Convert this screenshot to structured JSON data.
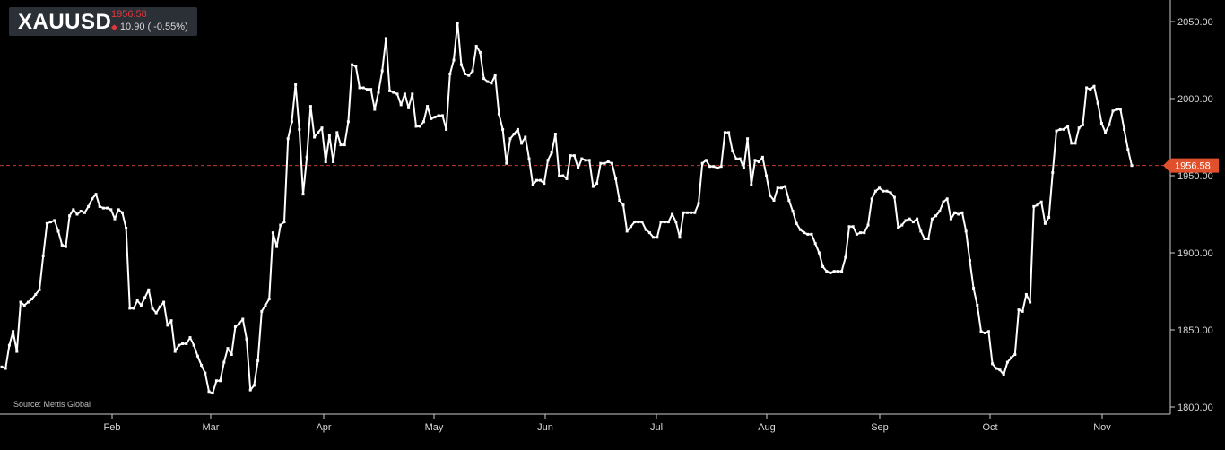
{
  "header": {
    "symbol": "XAUUSD",
    "price": "1956.58",
    "change": "10.90 ( -0.55%)"
  },
  "source": "Source: Mettis Global",
  "colors": {
    "background": "#000000",
    "line": "#ffffff",
    "price_line": "#c0392b",
    "price_tag": "#e0502c",
    "axis": "#cccccc",
    "down": "#e0383e"
  },
  "chart_data": {
    "type": "line",
    "title": "XAUUSD",
    "x_tick_labels": [
      "Feb",
      "Mar",
      "Apr",
      "May",
      "Jun",
      "Jul",
      "Aug",
      "Sep",
      "Oct",
      "Nov"
    ],
    "y_tick_labels": [
      "2050.00",
      "2000.00",
      "1950.00",
      "1900.00",
      "1850.00",
      "1800.00"
    ],
    "y_ticks": [
      2050,
      2000,
      1950,
      1900,
      1850,
      1800
    ],
    "ylim": [
      1800,
      2050
    ],
    "y_axis_position": "right",
    "grid": false,
    "last_price": 1956.58,
    "last_price_label": "1956.58",
    "series": [
      {
        "values": [
          1826,
          1825,
          1840,
          1849,
          1836,
          1868,
          1866,
          1868,
          1870,
          1873,
          1876,
          1898,
          1919,
          1920,
          1921,
          1914,
          1905,
          1904,
          1924,
          1928,
          1925,
          1927,
          1926,
          1930,
          1935,
          1938,
          1930,
          1929,
          1929,
          1928,
          1922,
          1928,
          1926,
          1916,
          1864,
          1864,
          1869,
          1866,
          1871,
          1876,
          1864,
          1861,
          1865,
          1868,
          1853,
          1856,
          1836,
          1840,
          1841,
          1841,
          1845,
          1840,
          1833,
          1827,
          1822,
          1810,
          1809,
          1817,
          1817,
          1829,
          1838,
          1834,
          1852,
          1854,
          1857,
          1844,
          1811,
          1814,
          1830,
          1862,
          1866,
          1870,
          1913,
          1904,
          1918,
          1920,
          1974,
          1985,
          2009,
          1980,
          1938,
          1962,
          1995,
          1975,
          1978,
          1981,
          1959,
          1976,
          1959,
          1978,
          1970,
          1970,
          1985,
          2022,
          2021,
          2007,
          2007,
          2006,
          2006,
          1993,
          2004,
          2018,
          2039,
          2005,
          2004,
          2003,
          1996,
          2003,
          1994,
          2003,
          1982,
          1982,
          1985,
          1995,
          1987,
          1988,
          1989,
          1989,
          1980,
          2016,
          2025,
          2049,
          2022,
          2016,
          2015,
          2018,
          2034,
          2030,
          2013,
          2011,
          2010,
          2015,
          1990,
          1980,
          1958,
          1974,
          1977,
          1980,
          1971,
          1975,
          1961,
          1944,
          1947,
          1947,
          1945,
          1960,
          1965,
          1977,
          1950,
          1950,
          1948,
          1963,
          1963,
          1955,
          1961,
          1960,
          1960,
          1943,
          1945,
          1958,
          1958,
          1959,
          1958,
          1948,
          1934,
          1931,
          1914,
          1917,
          1920,
          1920,
          1920,
          1915,
          1913,
          1910,
          1910,
          1920,
          1920,
          1920,
          1925,
          1920,
          1910,
          1926,
          1926,
          1926,
          1926,
          1932,
          1958,
          1960,
          1956,
          1956,
          1955,
          1956,
          1978,
          1978,
          1966,
          1961,
          1961,
          1955,
          1974,
          1944,
          1960,
          1959,
          1962,
          1950,
          1937,
          1934,
          1942,
          1942,
          1943,
          1934,
          1927,
          1919,
          1915,
          1913,
          1912,
          1912,
          1906,
          1900,
          1891,
          1888,
          1887,
          1888,
          1888,
          1888,
          1897,
          1917,
          1917,
          1912,
          1913,
          1913,
          1918,
          1935,
          1940,
          1942,
          1940,
          1940,
          1939,
          1936,
          1916,
          1918,
          1921,
          1922,
          1920,
          1922,
          1914,
          1909,
          1909,
          1922,
          1924,
          1927,
          1933,
          1935,
          1922,
          1926,
          1925,
          1926,
          1914,
          1895,
          1877,
          1866,
          1849,
          1848,
          1849,
          1828,
          1825,
          1824,
          1821,
          1829,
          1832,
          1834,
          1863,
          1862,
          1873,
          1868,
          1930,
          1931,
          1933,
          1919,
          1923,
          1952,
          1979,
          1980,
          1980,
          1982,
          1971,
          1971,
          1981,
          1983,
          2007,
          2006,
          2008,
          1997,
          1984,
          1978,
          1983,
          1992,
          1993,
          1993,
          1980,
          1967,
          1956.58
        ]
      }
    ]
  }
}
